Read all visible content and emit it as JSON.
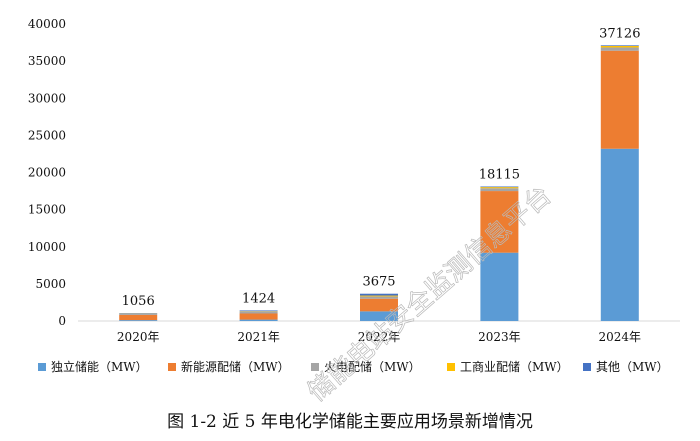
{
  "chart_data": {
    "type": "bar",
    "stacked": true,
    "categories": [
      "2020年",
      "2021年",
      "2022年",
      "2023年",
      "2024年"
    ],
    "series": [
      {
        "name": "独立储能（MW）",
        "color": "#5b9bd5",
        "values": [
          120,
          190,
          1300,
          9200,
          23200
        ]
      },
      {
        "name": "新能源配储（MW）",
        "color": "#ed7d31",
        "values": [
          700,
          820,
          1700,
          8300,
          13200
        ]
      },
      {
        "name": "火电配储（MW）",
        "color": "#a5a5a5",
        "values": [
          130,
          250,
          310,
          380,
          440
        ]
      },
      {
        "name": "工商业配储（MW）",
        "color": "#ffc000",
        "values": [
          40,
          54,
          115,
          150,
          196
        ]
      },
      {
        "name": "其他（MW）",
        "color": "#4472c4",
        "values": [
          66,
          110,
          250,
          85,
          90
        ]
      }
    ],
    "totals": [
      "1056",
      "1424",
      "3675",
      "18115",
      "37126"
    ],
    "ylim": [
      0,
      40000
    ],
    "yticks": [
      "0",
      "5000",
      "10000",
      "15000",
      "20000",
      "25000",
      "30000",
      "35000",
      "40000"
    ],
    "grid": false,
    "legend_position": "bottom"
  },
  "caption": "图 1-2  近 5 年电化学储能主要应用场景新增情况",
  "watermark": "储能电站安全监测信息平台"
}
